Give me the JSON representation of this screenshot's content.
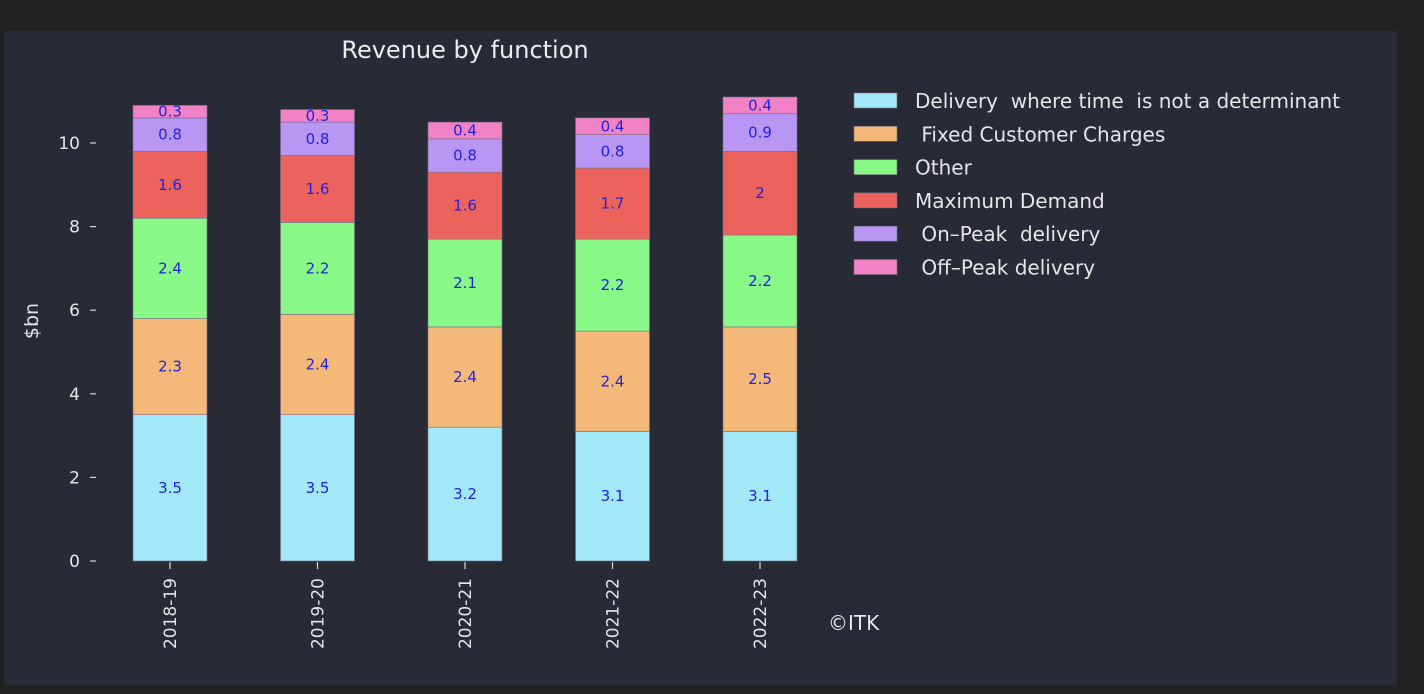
{
  "chart_data": {
    "type": "bar",
    "stacked": true,
    "title": "Revenue by function",
    "xlabel": "",
    "ylabel": "$bn",
    "ylim": [
      0,
      11.1
    ],
    "yticks": [
      0,
      2,
      4,
      6,
      8,
      10
    ],
    "grid": false,
    "legend_position": "right",
    "categories": [
      "2018-19",
      "2019-20",
      "2020-21",
      "2021-22",
      "2022-23"
    ],
    "series": [
      {
        "name": "Delivery  where time  is not a determinant",
        "color": "#a2e8f8",
        "values": [
          3.5,
          3.5,
          3.2,
          3.1,
          3.1
        ]
      },
      {
        "name": " Fixed Customer Charges",
        "color": "#f4b978",
        "values": [
          2.3,
          2.4,
          2.4,
          2.4,
          2.5
        ]
      },
      {
        "name": "Other",
        "color": "#88f887",
        "values": [
          2.4,
          2.2,
          2.1,
          2.2,
          2.2
        ]
      },
      {
        "name": "Maximum Demand",
        "color": "#ec635d",
        "values": [
          1.6,
          1.6,
          1.6,
          1.7,
          2.0
        ]
      },
      {
        "name": " On–Peak  delivery",
        "color": "#b996f4",
        "values": [
          0.8,
          0.8,
          0.8,
          0.8,
          0.9
        ]
      },
      {
        "name": " Off–Peak delivery",
        "color": "#f182c6",
        "values": [
          0.3,
          0.3,
          0.4,
          0.4,
          0.4
        ]
      }
    ],
    "data_labels": [
      [
        "3.5",
        "3.5",
        "3.2",
        "3.1",
        "3.1"
      ],
      [
        "2.3",
        "2.4",
        "2.4",
        "2.4",
        "2.5"
      ],
      [
        "2.4",
        "2.2",
        "2.1",
        "2.2",
        "2.2"
      ],
      [
        "1.6",
        "1.6",
        "1.6",
        "1.7",
        "2"
      ],
      [
        "0.8",
        "0.8",
        "0.8",
        "0.8",
        "0.9"
      ],
      [
        "0.3",
        "0.3",
        "0.4",
        "0.4",
        "0.4"
      ]
    ],
    "annotations": [
      "©ITK"
    ],
    "label_color": "#2222dd"
  }
}
